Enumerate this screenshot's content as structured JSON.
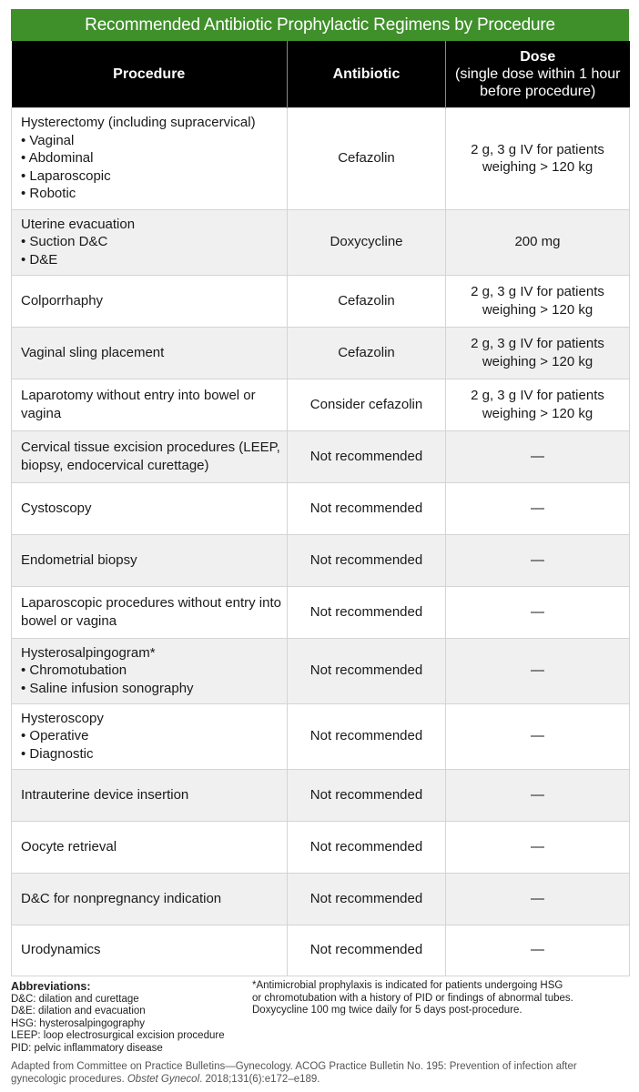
{
  "title": "Recommended Antibiotic Prophylactic Regimens by Procedure",
  "headers": {
    "procedure": "Procedure",
    "antibiotic": "Antibiotic",
    "dose_title": "Dose",
    "dose_sub": "(single dose within 1 hour before procedure)"
  },
  "rows": [
    {
      "procedure": "Hysterectomy (including supracervical)",
      "items": [
        "• Vaginal",
        "• Abdominal",
        "• Laparoscopic",
        "• Robotic"
      ],
      "antibiotic": "Cefazolin",
      "dose": "2 g, 3 g IV for patients weighing > 120 kg",
      "h": 112
    },
    {
      "procedure": "Uterine evacuation",
      "items": [
        "• Suction D&C",
        "• D&E"
      ],
      "antibiotic": "Doxycycline",
      "dose": "200 mg",
      "h": 72
    },
    {
      "procedure": "Colporrhaphy",
      "items": [],
      "antibiotic": "Cefazolin",
      "dose": "2 g, 3 g IV for patients weighing > 120 kg",
      "h": 57
    },
    {
      "procedure": "Vaginal sling placement",
      "items": [],
      "antibiotic": "Cefazolin",
      "dose": "2 g, 3 g IV for patients weighing > 120 kg",
      "h": 57
    },
    {
      "procedure": "Laparotomy without entry into bowel or vagina",
      "items": [],
      "antibiotic": "Consider cefazolin",
      "dose": "2 g, 3 g IV for patients weighing > 120 kg",
      "h": 57
    },
    {
      "procedure": "Cervical tissue excision procedures (LEEP, biopsy, endocervical curettage)",
      "items": [],
      "antibiotic": "Not recommended",
      "dose": "—",
      "h": 57
    },
    {
      "procedure": "Cystoscopy",
      "items": [],
      "antibiotic": "Not recommended",
      "dose": "—",
      "h": 57
    },
    {
      "procedure": "Endometrial biopsy",
      "items": [],
      "antibiotic": "Not recommended",
      "dose": "—",
      "h": 57
    },
    {
      "procedure": "Laparoscopic procedures without entry into bowel or vagina",
      "items": [],
      "antibiotic": "Not recommended",
      "dose": "—",
      "h": 57
    },
    {
      "procedure": "Hysterosalpingogram*",
      "items": [
        "• Chromotubation",
        "• Saline infusion sonography"
      ],
      "antibiotic": "Not recommended",
      "dose": "—",
      "h": 72
    },
    {
      "procedure": "Hysteroscopy",
      "items": [
        "• Operative",
        "• Diagnostic"
      ],
      "antibiotic": "Not recommended",
      "dose": "—",
      "h": 72
    },
    {
      "procedure": "Intrauterine device insertion",
      "items": [],
      "antibiotic": "Not recommended",
      "dose": "—",
      "h": 57
    },
    {
      "procedure": "Oocyte retrieval",
      "items": [],
      "antibiotic": "Not recommended",
      "dose": "—",
      "h": 57
    },
    {
      "procedure": "D&C for nonpregnancy indication",
      "items": [],
      "antibiotic": "Not recommended",
      "dose": "—",
      "h": 57
    },
    {
      "procedure": "Urodynamics",
      "items": [],
      "antibiotic": "Not recommended",
      "dose": "—",
      "h": 56
    }
  ],
  "abbreviations": {
    "heading": "Abbreviations:",
    "items": [
      "D&C: dilation and curettage",
      "D&E: dilation and evacuation",
      "HSG: hysterosalpingography",
      "LEEP: loop electrosurgical excision procedure",
      "PID: pelvic inflammatory disease"
    ]
  },
  "footnote": [
    "*Antimicrobial prophylaxis is indicated for patients undergoing HSG",
    "or chromotubation with a history of PID or findings of abnormal tubes.",
    "Doxycycline 100 mg twice daily for 5 days post-procedure."
  ],
  "source": {
    "text1": "Adapted from Committee on Practice Bulletins—Gynecology. ACOG Practice Bulletin No. 195: Prevention of infection after gynecologic procedures. ",
    "journal": "Obstet Gynecol",
    "text2": ". 2018;131(6):e172–e189."
  }
}
